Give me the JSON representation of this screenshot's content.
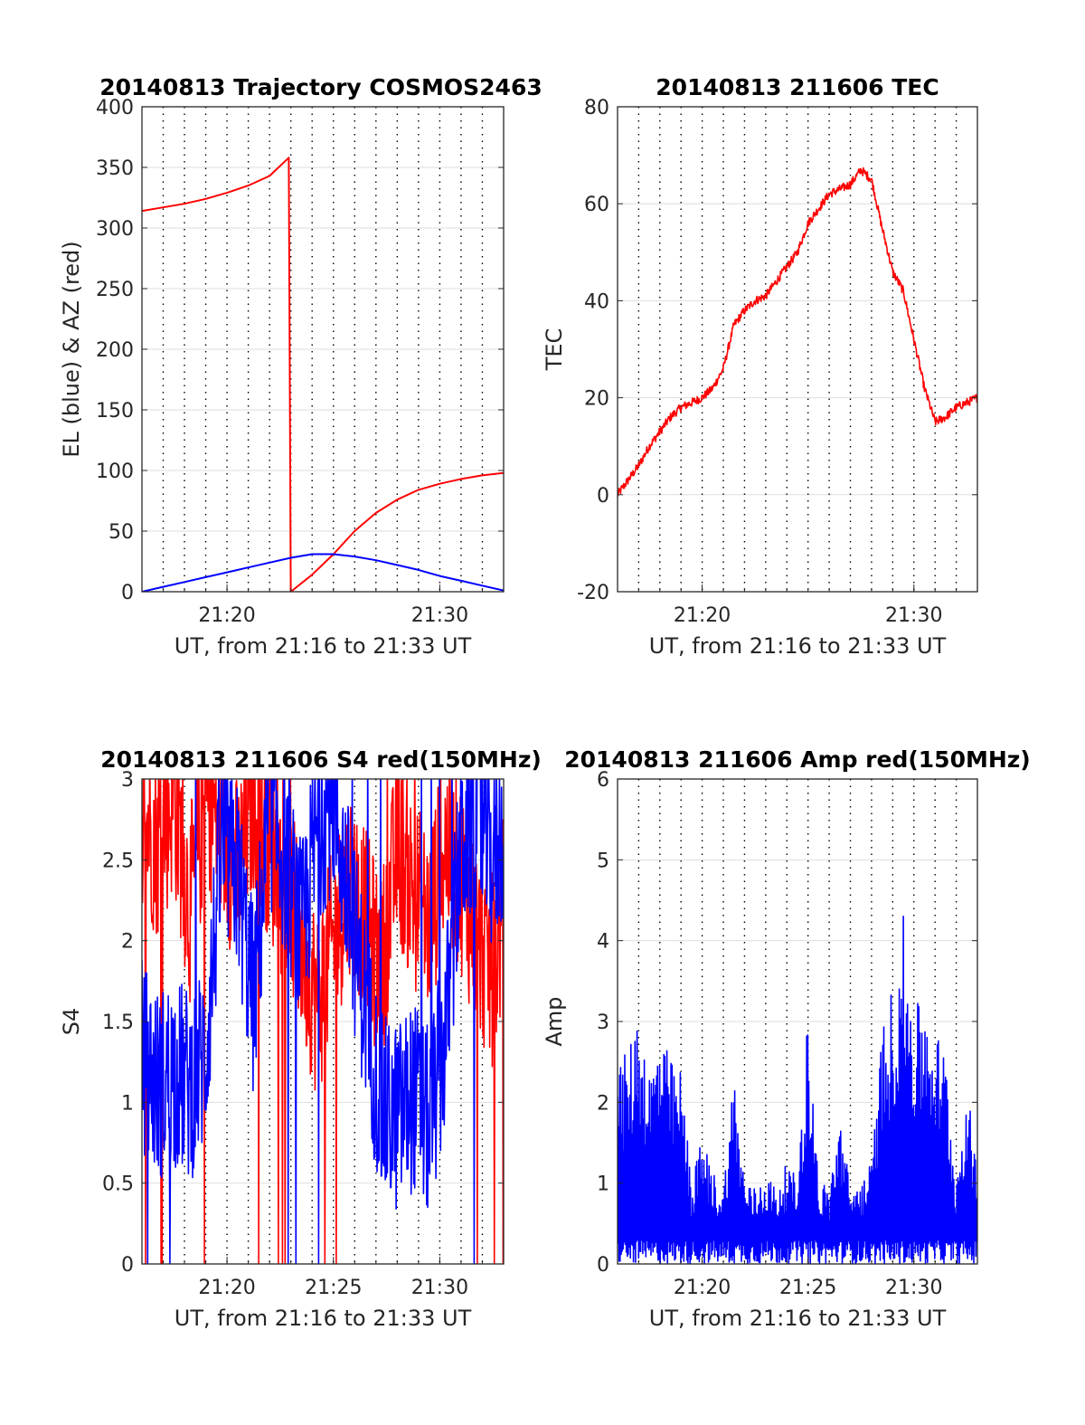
{
  "chart_data": [
    {
      "type": "line",
      "title": "20140813 Trajectory COSMOS2463",
      "xlabel": "UT, from 21:16 to 21:33 UT",
      "ylabel": "EL (blue) & AZ (red)",
      "xlim": [
        21.2667,
        21.55
      ],
      "ylim": [
        0,
        400
      ],
      "yticks": [
        0,
        50,
        100,
        150,
        200,
        250,
        300,
        350,
        400
      ],
      "xticks": [
        {
          "value": 21.3333,
          "label": "21:20"
        },
        {
          "value": 21.5,
          "label": "21:30"
        }
      ],
      "grid": "dotted vertical lines every minute, light horizontal lines at y ticks",
      "series": [
        {
          "color": "#ff0000",
          "x": [
            21.2667,
            21.2833,
            21.3,
            21.3167,
            21.3333,
            21.35,
            21.3667,
            21.3817,
            21.3833,
            21.4,
            21.4167,
            21.4333,
            21.45,
            21.4667,
            21.4833,
            21.5,
            21.5167,
            21.5333,
            21.55
          ],
          "y": [
            314,
            317,
            320,
            324,
            329,
            335,
            343,
            358,
            0,
            14,
            31,
            50,
            65,
            76,
            84,
            89,
            93,
            96,
            98
          ]
        },
        {
          "color": "#0000ff",
          "x": [
            21.2667,
            21.2833,
            21.3,
            21.3167,
            21.3333,
            21.35,
            21.3667,
            21.3833,
            21.4,
            21.4083,
            21.4167,
            21.4333,
            21.45,
            21.4667,
            21.4833,
            21.5,
            21.5167,
            21.5333,
            21.55
          ],
          "y": [
            0,
            4,
            8,
            12,
            16,
            20,
            24,
            28,
            31,
            31,
            31,
            29,
            26,
            22,
            18,
            13,
            9,
            5,
            1
          ]
        }
      ]
    },
    {
      "type": "line",
      "title": "20140813 211606 TEC",
      "xlabel": "UT, from 21:16 to 21:33 UT",
      "ylabel": "TEC",
      "xlim": [
        21.2667,
        21.55
      ],
      "ylim": [
        -20,
        80
      ],
      "yticks": [
        -20,
        0,
        20,
        40,
        60,
        80
      ],
      "xticks": [
        {
          "value": 21.3333,
          "label": "21:20"
        },
        {
          "value": 21.5,
          "label": "21:30"
        }
      ],
      "grid": "dotted vertical lines every minute, light horizontal lines at y ticks",
      "series": [
        {
          "color": "#ff0000",
          "x": [
            21.2667,
            21.275,
            21.2833,
            21.2917,
            21.3,
            21.3083,
            21.3167,
            21.325,
            21.3333,
            21.3417,
            21.35,
            21.3583,
            21.3667,
            21.375,
            21.3833,
            21.3917,
            21.4,
            21.4083,
            21.4167,
            21.425,
            21.4333,
            21.4417,
            21.45,
            21.4583,
            21.4667,
            21.4708,
            21.475,
            21.4833,
            21.4917,
            21.5,
            21.5083,
            21.5167,
            21.525,
            21.5333,
            21.5417,
            21.55
          ],
          "y": [
            0,
            3,
            6,
            10,
            13,
            16,
            18,
            19,
            20,
            22,
            26,
            35,
            38,
            40,
            41,
            44,
            47,
            50,
            56,
            59,
            62,
            63,
            64,
            67,
            65,
            60,
            55,
            46,
            42,
            32,
            22,
            15,
            16,
            18,
            19,
            20
          ]
        }
      ]
    },
    {
      "type": "line",
      "title": "20140813 211606 S4 red(150MHz)",
      "xlabel": "UT, from 21:16 to 21:33 UT",
      "ylabel": "S4",
      "xlim": [
        21.2667,
        21.55
      ],
      "ylim": [
        0,
        3
      ],
      "yticks": [
        0,
        0.5,
        1,
        1.5,
        2,
        2.5,
        3
      ],
      "xticks": [
        {
          "value": 21.3333,
          "label": "21:20"
        },
        {
          "value": 21.4167,
          "label": "21:25"
        },
        {
          "value": 21.5,
          "label": "21:30"
        }
      ],
      "grid": "dotted vertical lines every minute, light horizontal lines at y ticks",
      "series": [
        {
          "color": "#ff0000",
          "x": [
            21.2667,
            21.2792,
            21.2917,
            21.3042,
            21.3167,
            21.3292,
            21.3417,
            21.3542,
            21.3667,
            21.3792,
            21.3917,
            21.4042,
            21.4167,
            21.4292,
            21.4417,
            21.4542,
            21.4667,
            21.4792,
            21.4917,
            21.5042,
            21.5167,
            21.5292,
            21.5417,
            21.55
          ],
          "y": [
            2.8,
            2.6,
            2.9,
            2.2,
            2.9,
            2.7,
            2.4,
            2.9,
            2.6,
            2.3,
            2.0,
            1.6,
            2.0,
            2.4,
            2.1,
            1.8,
            2.6,
            2.3,
            2.1,
            2.6,
            2.4,
            2.0,
            1.8,
            2.2
          ]
        },
        {
          "color": "#0000ff",
          "x": [
            21.2667,
            21.2792,
            21.2917,
            21.3042,
            21.3167,
            21.3292,
            21.3417,
            21.3542,
            21.3667,
            21.3792,
            21.3917,
            21.4042,
            21.4167,
            21.4292,
            21.4417,
            21.4542,
            21.4667,
            21.4792,
            21.4917,
            21.5042,
            21.5167,
            21.5292,
            21.5417,
            21.55
          ],
          "y": [
            1.3,
            1.1,
            1.2,
            1.1,
            1.3,
            2.6,
            2.4,
            1.6,
            2.8,
            2.5,
            2.0,
            2.7,
            2.9,
            2.2,
            1.6,
            0.95,
            0.9,
            1.05,
            0.85,
            1.4,
            2.6,
            2.8,
            2.5,
            2.7
          ]
        }
      ]
    },
    {
      "type": "line",
      "title": "20140813 211606 Amp red(150MHz)",
      "xlabel": "UT, from 21:16 to 21:33 UT",
      "ylabel": "Amp",
      "xlim": [
        21.2667,
        21.55
      ],
      "ylim": [
        0,
        6
      ],
      "yticks": [
        0,
        1,
        2,
        3,
        4,
        5,
        6
      ],
      "xticks": [
        {
          "value": 21.3333,
          "label": "21:20"
        },
        {
          "value": 21.4167,
          "label": "21:25"
        },
        {
          "value": 21.5,
          "label": "21:30"
        }
      ],
      "grid": "dotted vertical lines every minute, light horizontal lines at y ticks",
      "series": [
        {
          "color": "#0000ff",
          "x": [
            21.2667,
            21.275,
            21.2833,
            21.2917,
            21.3,
            21.3083,
            21.3167,
            21.325,
            21.3333,
            21.3417,
            21.35,
            21.3583,
            21.3667,
            21.375,
            21.3833,
            21.3917,
            21.4,
            21.4083,
            21.4167,
            21.425,
            21.4333,
            21.4417,
            21.45,
            21.4583,
            21.4667,
            21.475,
            21.4833,
            21.4917,
            21.5,
            21.5083,
            21.5167,
            21.525,
            21.5333,
            21.5417,
            21.55
          ],
          "y": [
            2.4,
            2.5,
            3.1,
            2.3,
            2.8,
            2.4,
            2.3,
            1.0,
            1.5,
            1.1,
            0.9,
            2.3,
            1.0,
            0.9,
            1.1,
            0.9,
            1.2,
            1.0,
            3.0,
            1.0,
            0.9,
            1.8,
            0.9,
            1.0,
            1.2,
            2.8,
            3.3,
            4.1,
            3.0,
            3.2,
            2.8,
            2.5,
            1.0,
            2.2,
            1.0
          ]
        }
      ]
    }
  ]
}
